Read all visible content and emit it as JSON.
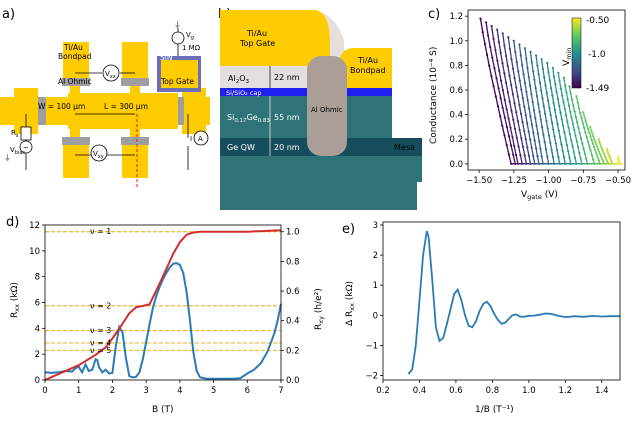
{
  "colors": {
    "gold": "#ffcc00",
    "ohmic_grey": "#9e9e9e",
    "sin_purple": "#6a6fb8",
    "al2o3_fill": "#e4dfdc",
    "cap_blue": "#1f1ff0",
    "sige_teal": "#2e7377",
    "qw_dark": "#164e5e",
    "ohmic_taupe": "#aa9e96",
    "rxx_blue": "#2a7bb5",
    "rxy_red": "#d22e2e",
    "ref_orange": "#f0a000",
    "delta_blue": "#2a7bb5",
    "grid_axes": "#000000"
  },
  "panel_a": {
    "label": "a)",
    "labels": {
      "tiau_bondpad": "Ti/Au\nBondpad",
      "al_ohmic": "Al Ohmic",
      "sin": "SiN",
      "top_gate": "Top Gate",
      "width": "W = 100 μm",
      "length": "L = 300 μm",
      "vxx": "V",
      "vxx_sub": "xx",
      "vxy": "V",
      "vxy_sub": "xy",
      "vg": "V",
      "vg_sub": "g",
      "resistor": "1 MΩ",
      "r_s": "R",
      "r_s_sub": "s",
      "vbias": "V",
      "vbias_sub": "bias",
      "current": "I",
      "ammeter": "A"
    }
  },
  "panel_b": {
    "label": "b)",
    "labels": {
      "top_gate": "Ti/Au\nTop Gate",
      "bondpad": "Ti/Au\nBondpad",
      "al2o3": "Al",
      "al2o3_sub1": "2",
      "al2o3_mid": "O",
      "al2o3_sub2": "3",
      "al2o3_thickness": "22 nm",
      "cap": "Si/SiO₂ cap",
      "sige": "Si",
      "sige_sub1": "0.17",
      "sige_mid": "Ge",
      "sige_sub2": "0.83",
      "sige_thickness": "55 nm",
      "qw": "Ge QW",
      "qw_thickness": "20 nm",
      "ohmic": "Al Ohmic",
      "mesa": "Mesa"
    }
  },
  "panel_c": {
    "label": "c)",
    "xlabel": "V",
    "xlabel_sub": "gate",
    "xlabel_unit": " (V)",
    "ylabel": "Conductance (10⁻⁴ S)",
    "xticks": [
      "−1.50",
      "−1.25",
      "−1.00",
      "−0.75",
      "−0.50"
    ],
    "yticks": [
      "0.0",
      "0.2",
      "0.4",
      "0.6",
      "0.8",
      "1.0",
      "1.2"
    ],
    "colorbar_label": "V",
    "colorbar_label_sub": "min",
    "colorbar_ticks": [
      "-0.50",
      "-1.0",
      "-1.49"
    ]
  },
  "panel_d": {
    "label": "d)",
    "xlabel": "B (T)",
    "ylabel_left": "R",
    "ylabel_left_sub": "xx",
    "ylabel_left_unit": " (kΩ)",
    "ylabel_right": "R",
    "ylabel_right_sub": "xy",
    "ylabel_right_unit": " (h/e²)",
    "xticks": [
      "0",
      "1",
      "2",
      "3",
      "4",
      "5",
      "6",
      "7"
    ],
    "yticks_left": [
      "0",
      "2",
      "4",
      "6",
      "8",
      "10",
      "12"
    ],
    "yticks_right": [
      "0.0",
      "0.2",
      "0.4",
      "0.6",
      "0.8",
      "1.0"
    ],
    "nu_labels": [
      "ν = 1",
      "ν = 2",
      "ν = 3",
      "ν = 4",
      "ν = 5"
    ]
  },
  "panel_e": {
    "label": "e)",
    "xlabel": "1/B  (T⁻¹)",
    "ylabel": "Δ R",
    "ylabel_sub": "xx",
    "ylabel_unit": " (kΩ)",
    "xticks": [
      "0.2",
      "0.4",
      "0.6",
      "0.8",
      "1.0",
      "1.2",
      "1.4"
    ],
    "yticks": [
      "−2",
      "−1",
      "0",
      "1",
      "2",
      "3"
    ]
  },
  "chart_data": [
    {
      "type": "line",
      "panel": "c",
      "title": "",
      "xlabel": "V_gate (V)",
      "ylabel": "Conductance (10^-4 S)",
      "xlim": [
        -1.58,
        -0.45
      ],
      "ylim": [
        -0.05,
        1.25
      ],
      "colormap": "viridis",
      "colorbar": {
        "label": "V_min",
        "range": [
          -1.49,
          -0.5
        ]
      },
      "series": [
        {
          "name": "V_min=-1.49",
          "vmin": -1.49,
          "start": -1.49,
          "x_top": -1.49,
          "g_top": 1.18,
          "x_zero": -1.27
        },
        {
          "name": "V_min=-1.45",
          "vmin": -1.45,
          "start": -1.45,
          "x_top": -1.45,
          "g_top": 1.15,
          "x_zero": -1.24
        },
        {
          "name": "V_min=-1.41",
          "vmin": -1.41,
          "start": -1.41,
          "x_top": -1.41,
          "g_top": 1.12,
          "x_zero": -1.22
        },
        {
          "name": "V_min=-1.37",
          "vmin": -1.37,
          "start": -1.37,
          "x_top": -1.37,
          "g_top": 1.09,
          "x_zero": -1.19
        },
        {
          "name": "V_min=-1.33",
          "vmin": -1.33,
          "start": -1.33,
          "x_top": -1.33,
          "g_top": 1.06,
          "x_zero": -1.16
        },
        {
          "name": "V_min=-1.29",
          "vmin": -1.29,
          "start": -1.29,
          "x_top": -1.29,
          "g_top": 1.03,
          "x_zero": -1.13
        },
        {
          "name": "V_min=-1.25",
          "vmin": -1.25,
          "start": -1.25,
          "x_top": -1.25,
          "g_top": 1.0,
          "x_zero": -1.1
        },
        {
          "name": "V_min=-1.21",
          "vmin": -1.21,
          "start": -1.21,
          "x_top": -1.21,
          "g_top": 0.97,
          "x_zero": -1.07
        },
        {
          "name": "V_min=-1.17",
          "vmin": -1.17,
          "start": -1.17,
          "x_top": -1.17,
          "g_top": 0.94,
          "x_zero": -1.04
        },
        {
          "name": "V_min=-1.13",
          "vmin": -1.13,
          "start": -1.13,
          "x_top": -1.13,
          "g_top": 0.91,
          "x_zero": -1.0
        },
        {
          "name": "V_min=-1.09",
          "vmin": -1.09,
          "start": -1.09,
          "x_top": -1.09,
          "g_top": 0.88,
          "x_zero": -0.96
        },
        {
          "name": "V_min=-1.05",
          "vmin": -1.05,
          "start": -1.05,
          "x_top": -1.05,
          "g_top": 0.85,
          "x_zero": -0.92
        },
        {
          "name": "V_min=-1.01",
          "vmin": -1.01,
          "start": -1.01,
          "x_top": -1.01,
          "g_top": 0.82,
          "x_zero": -0.88
        },
        {
          "name": "V_min=-0.97",
          "vmin": -0.97,
          "start": -0.97,
          "x_top": -0.97,
          "g_top": 0.78,
          "x_zero": -0.84
        },
        {
          "name": "V_min=-0.93",
          "vmin": -0.93,
          "start": -0.93,
          "x_top": -0.93,
          "g_top": 0.74,
          "x_zero": -0.8
        },
        {
          "name": "V_min=-0.89",
          "vmin": -0.89,
          "start": -0.89,
          "x_top": -0.89,
          "g_top": 0.7,
          "x_zero": -0.76
        },
        {
          "name": "V_min=-0.85",
          "vmin": -0.85,
          "start": -0.85,
          "x_top": -0.85,
          "g_top": 0.63,
          "x_zero": -0.72
        },
        {
          "name": "V_min=-0.80",
          "vmin": -0.8,
          "start": -0.8,
          "x_top": -0.8,
          "g_top": 0.55,
          "x_zero": -0.67
        },
        {
          "name": "V_min=-0.75",
          "vmin": -0.75,
          "start": -0.75,
          "x_top": -0.75,
          "g_top": 0.42,
          "x_zero": -0.63
        },
        {
          "name": "V_min=-0.70",
          "vmin": -0.7,
          "start": -0.7,
          "x_top": -0.7,
          "g_top": 0.3,
          "x_zero": -0.6
        },
        {
          "name": "V_min=-0.64",
          "vmin": -0.64,
          "start": -0.64,
          "x_top": -0.64,
          "g_top": 0.2,
          "x_zero": -0.57
        },
        {
          "name": "V_min=-0.58",
          "vmin": -0.58,
          "start": -0.58,
          "x_top": -0.58,
          "g_top": 0.12,
          "x_zero": -0.54
        },
        {
          "name": "V_min=-0.50",
          "vmin": -0.5,
          "start": -0.5,
          "x_top": -0.5,
          "g_top": 0.06,
          "x_zero": -0.49
        }
      ],
      "x_end": -0.47
    },
    {
      "type": "line",
      "panel": "d",
      "xlabel": "B (T)",
      "ylabel": "R_xx (kΩ)",
      "ylabel_right": "R_xy (h/e^2)",
      "xlim": [
        0,
        7
      ],
      "ylim": [
        0,
        12
      ],
      "ylim_right": [
        0,
        1.0455
      ],
      "series": [
        {
          "name": "R_xx",
          "axis": "left",
          "color": "rxx_blue",
          "x": [
            0,
            0.2,
            0.4,
            0.6,
            0.8,
            0.9,
            1.0,
            1.05,
            1.1,
            1.2,
            1.3,
            1.4,
            1.5,
            1.55,
            1.6,
            1.7,
            1.8,
            1.9,
            2.0,
            2.1,
            2.2,
            2.3,
            2.4,
            2.5,
            2.6,
            2.7,
            2.8,
            2.9,
            3.0,
            3.1,
            3.2,
            3.3,
            3.4,
            3.5,
            3.6,
            3.7,
            3.8,
            3.9,
            4.0,
            4.1,
            4.2,
            4.3,
            4.4,
            4.5,
            4.6,
            4.8,
            5.0,
            5.2,
            5.4,
            5.6,
            5.8,
            6.0,
            6.2,
            6.4,
            6.6,
            6.8,
            6.9,
            7.0
          ],
          "y": [
            0.6,
            0.55,
            0.6,
            0.7,
            0.65,
            0.9,
            1.05,
            0.8,
            0.6,
            1.2,
            0.7,
            0.8,
            1.6,
            1.55,
            1.0,
            0.6,
            0.8,
            0.5,
            0.55,
            2.6,
            4.1,
            3.7,
            1.7,
            0.3,
            0.2,
            0.25,
            0.6,
            1.6,
            2.9,
            4.3,
            5.6,
            6.5,
            7.2,
            7.8,
            8.3,
            8.7,
            9.0,
            9.05,
            8.9,
            8.3,
            6.8,
            4.6,
            2.2,
            0.7,
            0.2,
            0.1,
            0.1,
            0.1,
            0.1,
            0.1,
            0.15,
            0.5,
            0.8,
            1.3,
            2.2,
            3.6,
            4.6,
            5.9
          ]
        },
        {
          "name": "R_xy",
          "axis": "right",
          "color": "rxy_red",
          "x": [
            0,
            0.5,
            1.0,
            1.5,
            1.8,
            2.0,
            2.3,
            2.5,
            2.7,
            2.9,
            3.1,
            3.25,
            3.4,
            3.6,
            3.8,
            4.0,
            4.2,
            4.4,
            4.6,
            5.0,
            5.5,
            6.0,
            6.5,
            7.0
          ],
          "y": [
            0,
            0.05,
            0.1,
            0.17,
            0.22,
            0.28,
            0.38,
            0.45,
            0.49,
            0.5,
            0.51,
            0.58,
            0.65,
            0.75,
            0.85,
            0.93,
            0.98,
            0.995,
            1.0,
            1.0,
            1.0,
            1.0,
            1.005,
            1.01
          ]
        }
      ],
      "filling_factor_lines_rxy": [
        1.0,
        0.5,
        0.333,
        0.25,
        0.2
      ],
      "filling_factor_labels": [
        "ν = 1",
        "ν = 2",
        "ν = 3",
        "ν = 4",
        "ν = 5"
      ]
    },
    {
      "type": "line",
      "panel": "e",
      "xlabel": "1/B (T^-1)",
      "ylabel": "ΔR_xx (kΩ)",
      "xlim": [
        0.2,
        1.5
      ],
      "ylim": [
        -2.15,
        3.1
      ],
      "series": [
        {
          "name": "ΔR_xx",
          "x": [
            0.34,
            0.36,
            0.38,
            0.4,
            0.42,
            0.44,
            0.45,
            0.47,
            0.49,
            0.51,
            0.53,
            0.55,
            0.57,
            0.59,
            0.61,
            0.63,
            0.65,
            0.67,
            0.69,
            0.71,
            0.73,
            0.75,
            0.77,
            0.79,
            0.81,
            0.83,
            0.85,
            0.87,
            0.89,
            0.91,
            0.93,
            0.95,
            0.97,
            1.0,
            1.03,
            1.06,
            1.09,
            1.12,
            1.15,
            1.18,
            1.21,
            1.25,
            1.3,
            1.35,
            1.4,
            1.45,
            1.5
          ],
          "y": [
            -1.95,
            -1.8,
            -1.0,
            0.5,
            2.0,
            2.8,
            2.6,
            1.2,
            -0.4,
            -0.85,
            -0.75,
            -0.3,
            0.2,
            0.7,
            0.85,
            0.5,
            0.0,
            -0.35,
            -0.4,
            -0.2,
            0.15,
            0.38,
            0.45,
            0.3,
            0.05,
            -0.15,
            -0.28,
            -0.25,
            -0.12,
            0.0,
            0.03,
            -0.04,
            -0.05,
            -0.02,
            -0.01,
            0.02,
            0.06,
            0.05,
            0.0,
            -0.04,
            -0.06,
            -0.03,
            -0.05,
            -0.02,
            -0.04,
            -0.03,
            -0.03
          ]
        }
      ]
    }
  ]
}
